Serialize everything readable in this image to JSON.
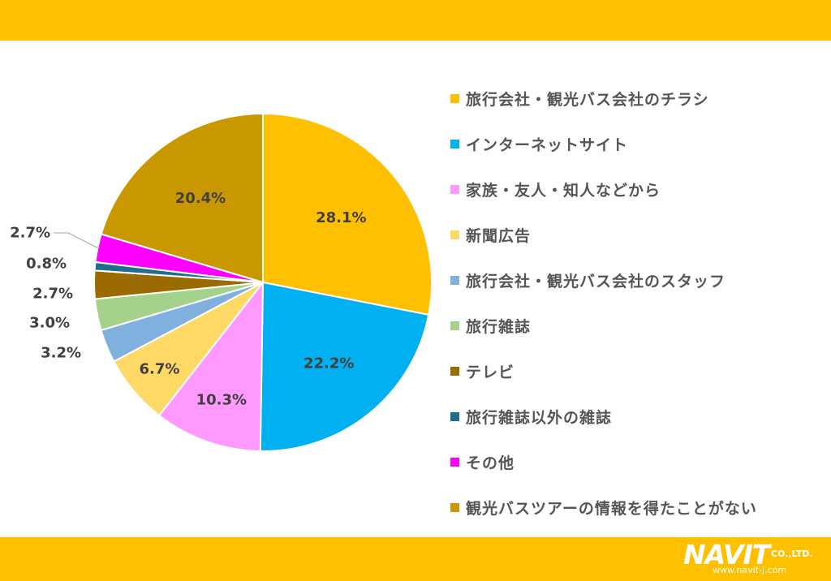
{
  "page": {
    "band_color": "#ffc000",
    "logo": {
      "name": "NAVIT",
      "suffix": "CO.,LTD.",
      "url": "www.navit-j.com"
    }
  },
  "chart_data": {
    "type": "pie",
    "title": "",
    "value_format": "percent",
    "legend_position": "right",
    "slices": [
      {
        "label": "旅行会社・観光バス会社のチラシ",
        "value": 28.1,
        "display": "28.1%",
        "color": "#ffc000"
      },
      {
        "label": "インターネットサイト",
        "value": 22.2,
        "display": "22.2%",
        "color": "#00b0f0"
      },
      {
        "label": "家族・友人・知人などから",
        "value": 10.3,
        "display": "10.3%",
        "color": "#ff99ff"
      },
      {
        "label": "新聞広告",
        "value": 6.7,
        "display": "6.7%",
        "color": "#ffd966"
      },
      {
        "label": "旅行会社・観光バス会社のスタッフ",
        "value": 3.2,
        "display": "3.2%",
        "color": "#7fb0de"
      },
      {
        "label": "旅行雑誌",
        "value": 3.0,
        "display": "3.0%",
        "color": "#a5d28a"
      },
      {
        "label": "テレビ",
        "value": 2.7,
        "display": "2.7%",
        "color": "#9c6b00"
      },
      {
        "label": "旅行雑誌以外の雑誌",
        "value": 0.8,
        "display": "0.8%",
        "color": "#1f6e8c"
      },
      {
        "label": "その他",
        "value": 2.7,
        "display": "2.7%",
        "color": "#ff00ff"
      },
      {
        "label": "観光バスツアーの情報を得たことがない",
        "value": 20.4,
        "display": "20.4%",
        "color": "#c99700"
      }
    ]
  }
}
